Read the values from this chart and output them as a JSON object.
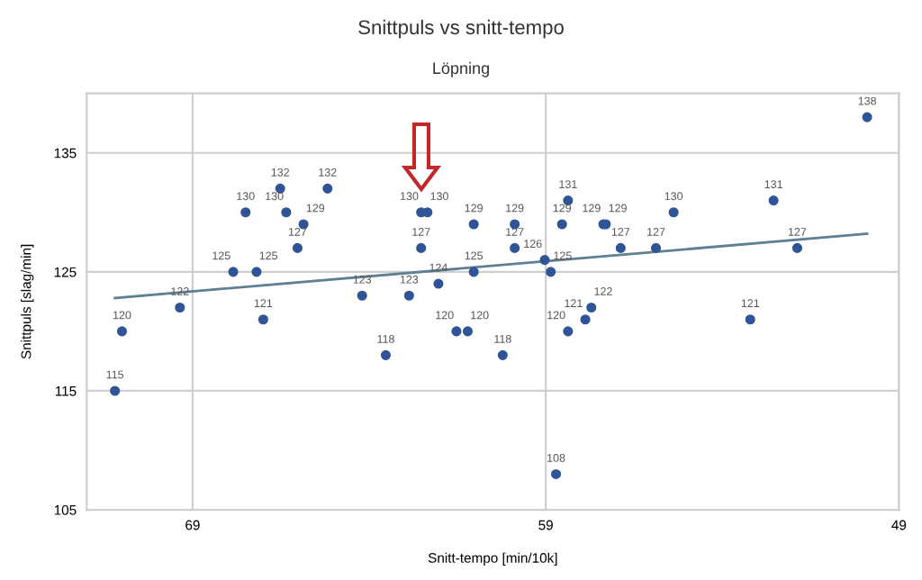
{
  "chart_data": {
    "type": "scatter",
    "title": "Snittpuls vs snitt-tempo",
    "subtitle": "Löpning",
    "xlabel": "Snitt-tempo [min/10k]",
    "ylabel": "Snittpuls [slag/min]",
    "series": [
      {
        "color": "#2f5597",
        "value_labels": [
          "115",
          "120",
          "122",
          "125",
          "125",
          "121",
          "130",
          "132",
          "130",
          "129",
          "127",
          "132",
          "123",
          "118",
          "123",
          "127",
          "130",
          "130",
          "124",
          "120",
          "120",
          "129",
          "125",
          "118",
          "129",
          "127",
          "126",
          "125",
          "108",
          "131",
          "129",
          "120",
          "121",
          "122",
          "129",
          "129",
          "127",
          "127",
          "130",
          "121",
          "131",
          "127",
          "138"
        ],
        "x": [
          71.2,
          71.0,
          69.36,
          67.85,
          67.19,
          67.0,
          67.5,
          66.52,
          66.35,
          65.86,
          66.03,
          65.18,
          64.2,
          63.53,
          62.87,
          62.53,
          62.53,
          62.35,
          62.04,
          61.53,
          61.21,
          61.04,
          61.04,
          60.22,
          59.88,
          59.88,
          59.03,
          58.86,
          58.71,
          58.37,
          58.54,
          58.37,
          57.88,
          57.71,
          57.37,
          57.3,
          56.88,
          55.88,
          55.38,
          53.21,
          52.55,
          51.88,
          49.9
        ],
        "values": [
          115,
          120,
          122,
          125,
          125,
          121,
          130,
          132,
          130,
          129,
          127,
          132,
          123,
          118,
          123,
          127,
          130,
          130,
          124,
          120,
          120,
          129,
          125,
          118,
          129,
          127,
          126,
          125,
          108,
          131,
          129,
          120,
          121,
          122,
          129,
          129,
          127,
          127,
          130,
          121,
          131,
          127,
          138
        ]
      },
      {
        "type": "line",
        "marker": "none",
        "color": "#5f7f92",
        "x": [
          71.2,
          49.9
        ],
        "values": [
          122.8,
          128.2
        ]
      }
    ],
    "marker": "circle",
    "xlim": [
      72,
      49
    ],
    "xticks": [
      69,
      59,
      49
    ],
    "ylim": [
      105,
      140
    ],
    "yticks": [
      105,
      115,
      125,
      135
    ],
    "grid": true
  }
}
